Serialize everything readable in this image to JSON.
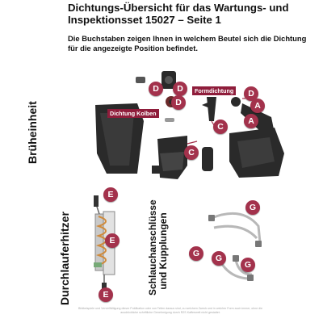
{
  "title": "Dichtungs-Übersicht für das Wartungs- und Inspektionsset 15027 – Seite 1",
  "subtitle": "Die Buchstaben zeigen Ihnen in welchem Beutel sich die Dichtung für die angezeigte Position befindet.",
  "sections": {
    "brueheinheit": "Brüheinheit",
    "durchlauferhitzer": "Durchlauferhitzer",
    "schlauch": "Schlauchanschlüsse und Kupplungen"
  },
  "tags": {
    "dichtung_kolben": "Dichtung Kolben",
    "formdichtung": "Formdichtung"
  },
  "badges": {
    "d1": "D",
    "d2": "D",
    "d3": "D",
    "d4": "D",
    "a1": "A",
    "a2": "A",
    "c1": "C",
    "c2": "C",
    "e1": "E",
    "e2": "E",
    "e3": "E",
    "g1": "G",
    "g2": "G",
    "g3": "G",
    "g4": "G"
  },
  "footer": "Bildbeispiele und Vervielfältigung dieser Publikation oder von Teilen daraus sind, zu welchem Zweck und in welcher Form auch immer, ohne die ausdrückliche schriftliche Genehmigung durch R2S Kaffeewelt nicht gestattet."
}
